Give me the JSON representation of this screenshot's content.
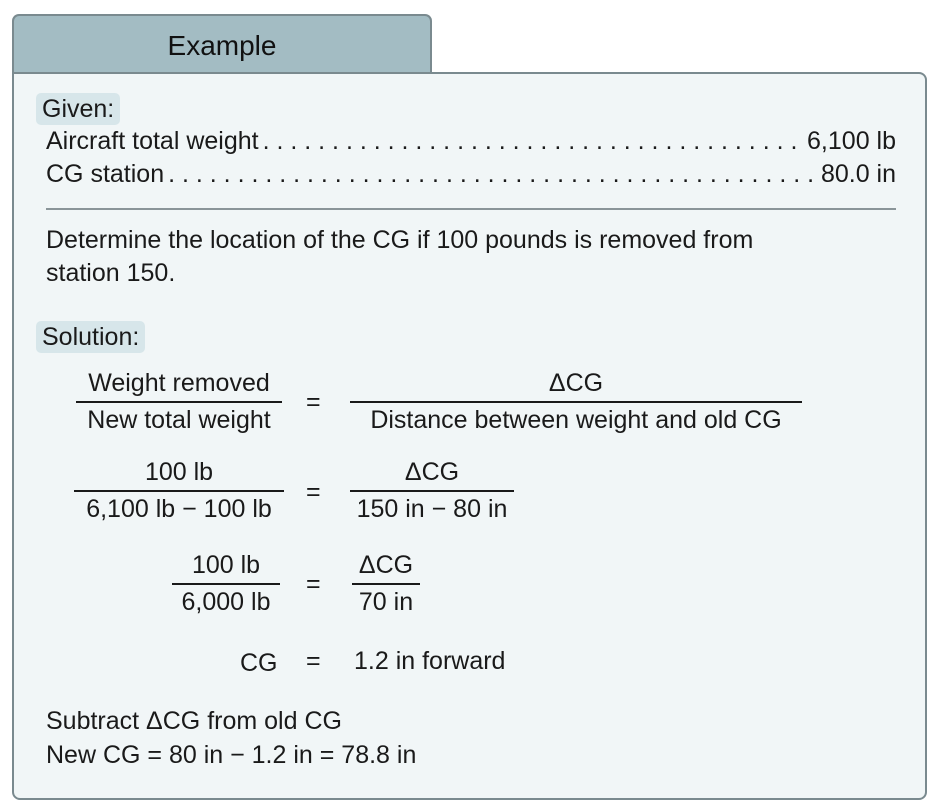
{
  "header": {
    "title": "Example"
  },
  "given": {
    "label": "Given:",
    "rows": [
      {
        "label": "Aircraft total weight",
        "value": "6,100 lb"
      },
      {
        "label": "CG station",
        "value": "80.0 in"
      }
    ]
  },
  "problem": {
    "line1": "Determine the location of the CG if 100 pounds is removed from",
    "line2": "station 150."
  },
  "solution": {
    "label": "Solution:",
    "equals": "=",
    "eq1": {
      "lhs_num": "Weight removed",
      "lhs_den": "New total weight",
      "rhs_num": "ΔCG",
      "rhs_den": "Distance between weight and old CG"
    },
    "eq2": {
      "lhs_num": "100 lb",
      "lhs_den": "6,100 lb − 100 lb",
      "rhs_num": "ΔCG",
      "rhs_den": "150 in − 80 in"
    },
    "eq3": {
      "lhs_num": "100 lb",
      "lhs_den": "6,000 lb",
      "rhs_num": "ΔCG",
      "rhs_den": "70 in"
    },
    "eq4": {
      "lhs": "CG",
      "rhs": "1.2 in forward"
    }
  },
  "conclusion": {
    "line1": "Subtract ΔCG from old CG",
    "line2": "New CG = 80 in − 1.2 in = 78.8 in"
  }
}
